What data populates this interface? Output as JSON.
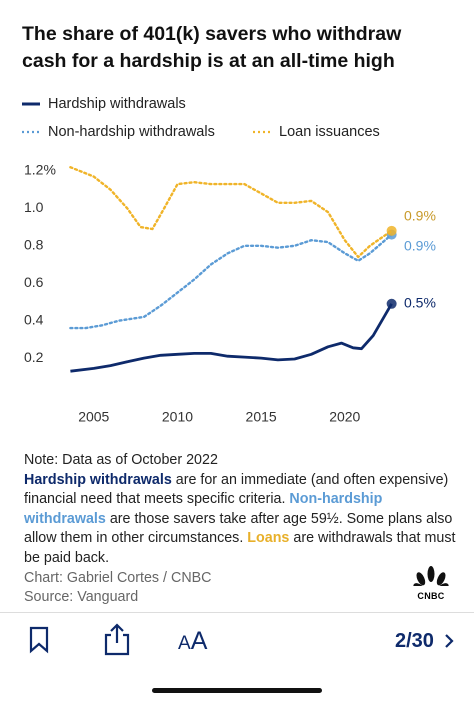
{
  "chart_data": {
    "type": "line",
    "title": "The share of 401(k) savers who withdraw cash for a hardship is at an all-time high",
    "xlim": [
      2003.1,
      2023.3
    ],
    "xticks": [
      2005,
      2010,
      2015,
      2020
    ],
    "ylim": [
      0,
      1.25
    ],
    "yticks": [
      {
        "value": 1.2,
        "label": "1.2%"
      },
      {
        "value": 1.0,
        "label": "1.0"
      },
      0.8,
      0.6,
      0.4,
      0.2
    ],
    "series": [
      {
        "name": "Hardship withdrawals",
        "color": "#0e2a6b",
        "style": "solid",
        "x": [
          2003.6,
          2005,
          2006,
          2007,
          2008,
          2009,
          2010,
          2011,
          2012,
          2013,
          2014,
          2015,
          2016,
          2017,
          2018,
          2019,
          2019.8,
          2020.5,
          2021,
          2021.7,
          2022.8
        ],
        "values": [
          0.13,
          0.145,
          0.16,
          0.18,
          0.2,
          0.215,
          0.22,
          0.225,
          0.225,
          0.21,
          0.205,
          0.2,
          0.19,
          0.195,
          0.22,
          0.26,
          0.28,
          0.255,
          0.25,
          0.32,
          0.49
        ],
        "value_labels": [
          null,
          null,
          null,
          null,
          null,
          null,
          null,
          null,
          null,
          null,
          null,
          null,
          null,
          null,
          null,
          null,
          null,
          null,
          null,
          null,
          "0.5%"
        ]
      },
      {
        "name": "Non-hardship withdrawals",
        "color": "#5b9bd5",
        "style": "dotted",
        "x": [
          2003.6,
          2004.5,
          2005.5,
          2006.5,
          2008,
          2009,
          2010,
          2011,
          2012,
          2013,
          2014,
          2015,
          2016,
          2017,
          2018,
          2019,
          2020,
          2020.8,
          2021.5,
          2022.8
        ],
        "values": [
          0.36,
          0.36,
          0.375,
          0.4,
          0.42,
          0.48,
          0.55,
          0.62,
          0.7,
          0.76,
          0.8,
          0.8,
          0.79,
          0.8,
          0.83,
          0.82,
          0.76,
          0.72,
          0.76,
          0.86
        ],
        "value_labels": [
          null,
          null,
          null,
          null,
          null,
          null,
          null,
          null,
          null,
          null,
          null,
          null,
          null,
          null,
          null,
          null,
          null,
          null,
          null,
          "0.9%"
        ]
      },
      {
        "name": "Loan issuances",
        "color": "#f0b429",
        "style": "dotted",
        "x": [
          2003.6,
          2005,
          2006,
          2007,
          2007.8,
          2008.5,
          2009.2,
          2010,
          2011,
          2012,
          2013,
          2014,
          2015,
          2016,
          2017,
          2018,
          2019,
          2020,
          2020.8,
          2021.5,
          2022.8
        ],
        "values": [
          1.22,
          1.17,
          1.1,
          1.0,
          0.9,
          0.89,
          1.0,
          1.13,
          1.14,
          1.13,
          1.13,
          1.13,
          1.08,
          1.03,
          1.03,
          1.04,
          0.98,
          0.83,
          0.74,
          0.8,
          0.88
        ],
        "value_labels": [
          null,
          null,
          null,
          null,
          null,
          null,
          null,
          null,
          null,
          null,
          null,
          null,
          null,
          null,
          null,
          null,
          null,
          null,
          null,
          null,
          "0.9%"
        ]
      }
    ]
  },
  "note": {
    "heading": "Note: Data as of October 2022",
    "body": [
      "Hardship withdrawals",
      " are for an immediate (and often expensive) financial need that meets specific criteria. ",
      "Non-hardship withdrawals",
      " are those savers take after age 59½. Some plans also allow them in other circumstances. ",
      "Loans",
      " are withdrawals that must be paid back."
    ],
    "credit": "Chart: Gabriel Cortes / CNBC",
    "source": "Source: Vanguard",
    "logo": "CNBC"
  },
  "toolbar": {
    "font_button": "AA",
    "page": "2/30"
  }
}
